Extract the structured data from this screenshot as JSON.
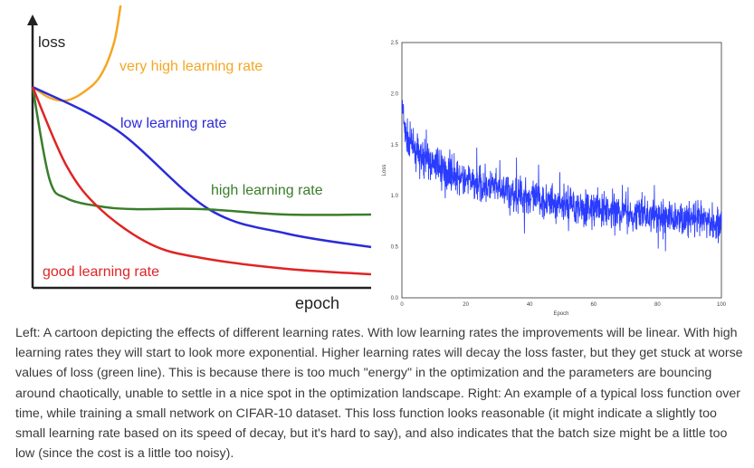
{
  "chart_data": [
    {
      "type": "line",
      "xlabel": "epoch",
      "ylabel": "loss",
      "grid": false,
      "series": [
        {
          "name": "very high learning rate",
          "color": "#f5a623",
          "x": [
            0,
            5,
            10,
            15,
            20,
            24,
            26
          ],
          "y": [
            74,
            70,
            69,
            72,
            78,
            90,
            104
          ]
        },
        {
          "name": "low learning rate",
          "color": "#2b2bd8",
          "x": [
            0,
            25,
            52,
            75,
            100
          ],
          "y": [
            74,
            58,
            29,
            20,
            15
          ]
        },
        {
          "name": "high learning rate",
          "color": "#3a7d2a",
          "x": [
            0,
            5,
            10,
            20,
            30,
            50,
            75,
            100
          ],
          "y": [
            74,
            40,
            33,
            30,
            29,
            29,
            27,
            27
          ]
        },
        {
          "name": "good learning rate",
          "color": "#e02424",
          "x": [
            0,
            10,
            20,
            35,
            50,
            75,
            100
          ],
          "y": [
            74,
            45,
            29,
            16,
            11,
            7,
            5
          ]
        }
      ]
    },
    {
      "type": "line",
      "xlabel": "Epoch",
      "ylabel": "Loss",
      "xlim": [
        0,
        100
      ],
      "ylim": [
        0,
        2.5
      ],
      "xticks": [
        "0",
        "20",
        "40",
        "60",
        "80",
        "100"
      ],
      "yticks": [
        "0.0",
        "0.5",
        "1.0",
        "1.5",
        "2.0",
        "2.5"
      ],
      "grid": false,
      "series": [
        {
          "color": "#2a3cff",
          "x": [
            0,
            1,
            5,
            10,
            20,
            40,
            60,
            80,
            100
          ],
          "y": [
            1.9,
            1.6,
            1.4,
            1.3,
            1.15,
            0.98,
            0.87,
            0.8,
            0.74
          ],
          "noise": 0.25
        }
      ]
    }
  ],
  "caption": "Left: A cartoon depicting the effects of different learning rates. With low learning rates the improvements will be linear. With high learning rates they will start to look more exponential. Higher learning rates will decay the loss faster, but they get stuck at worse values of loss (green line). This is because there is too much \"energy\" in the optimization and the parameters are bouncing around chaotically, unable to settle in a nice spot in the optimization landscape. Right: An example of a typical loss function over time, while training a small network on CIFAR-10 dataset. This loss function looks reasonable (it might indicate a slightly too small learning rate based on its speed of decay, but it's hard to say), and also indicates that the batch size might be a little too low (since the cost is a little too noisy)."
}
